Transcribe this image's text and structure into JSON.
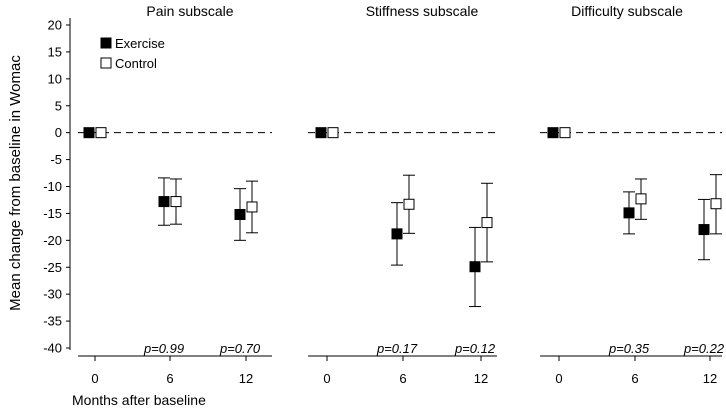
{
  "chart_data": {
    "type": "scatter",
    "ylabel": "Mean change from baseline in Womac",
    "xlabel": "Months after baseline",
    "ylim": [
      -40,
      20
    ],
    "y_ticks": [
      20,
      15,
      10,
      5,
      0,
      -5,
      -10,
      -15,
      -20,
      -25,
      -30,
      -35,
      -40
    ],
    "x_ticks": [
      0,
      6,
      12
    ],
    "legend": {
      "placement": "top-left",
      "exercise_label": "Exercise",
      "control_label": "Control"
    },
    "panels": [
      {
        "title": "Pain subscale",
        "exercise": [
          {
            "x": 0,
            "y": 0
          },
          {
            "x": 6,
            "y": -12.8,
            "low": -17.2,
            "high": -8.4
          },
          {
            "x": 12,
            "y": -15.2,
            "low": -20.0,
            "high": -10.4
          }
        ],
        "control": [
          {
            "x": 0,
            "y": 0
          },
          {
            "x": 6,
            "y": -12.8,
            "low": -17.0,
            "high": -8.6
          },
          {
            "x": 12,
            "y": -13.8,
            "low": -18.6,
            "high": -9.0
          }
        ],
        "p_values": [
          "p=0.99",
          "p=0.70"
        ]
      },
      {
        "title": "Stiffness subscale",
        "exercise": [
          {
            "x": 0,
            "y": 0
          },
          {
            "x": 6,
            "y": -18.8,
            "low": -24.6,
            "high": -13.0
          },
          {
            "x": 12,
            "y": -24.9,
            "low": -32.3,
            "high": -17.6
          }
        ],
        "control": [
          {
            "x": 0,
            "y": 0
          },
          {
            "x": 6,
            "y": -13.3,
            "low": -18.7,
            "high": -7.9
          },
          {
            "x": 12,
            "y": -16.7,
            "low": -24.0,
            "high": -9.4
          }
        ],
        "p_values": [
          "p=0.17",
          "p=0.12"
        ]
      },
      {
        "title": "Difficulty subscale",
        "exercise": [
          {
            "x": 0,
            "y": 0
          },
          {
            "x": 6,
            "y": -14.9,
            "low": -18.8,
            "high": -11.0
          },
          {
            "x": 12,
            "y": -18.0,
            "low": -23.6,
            "high": -12.4
          }
        ],
        "control": [
          {
            "x": 0,
            "y": 0
          },
          {
            "x": 6,
            "y": -12.3,
            "low": -16.1,
            "high": -8.6
          },
          {
            "x": 12,
            "y": -13.2,
            "low": -18.8,
            "high": -7.8
          }
        ],
        "p_values": [
          "p=0.35",
          "p=0.22"
        ]
      }
    ]
  }
}
